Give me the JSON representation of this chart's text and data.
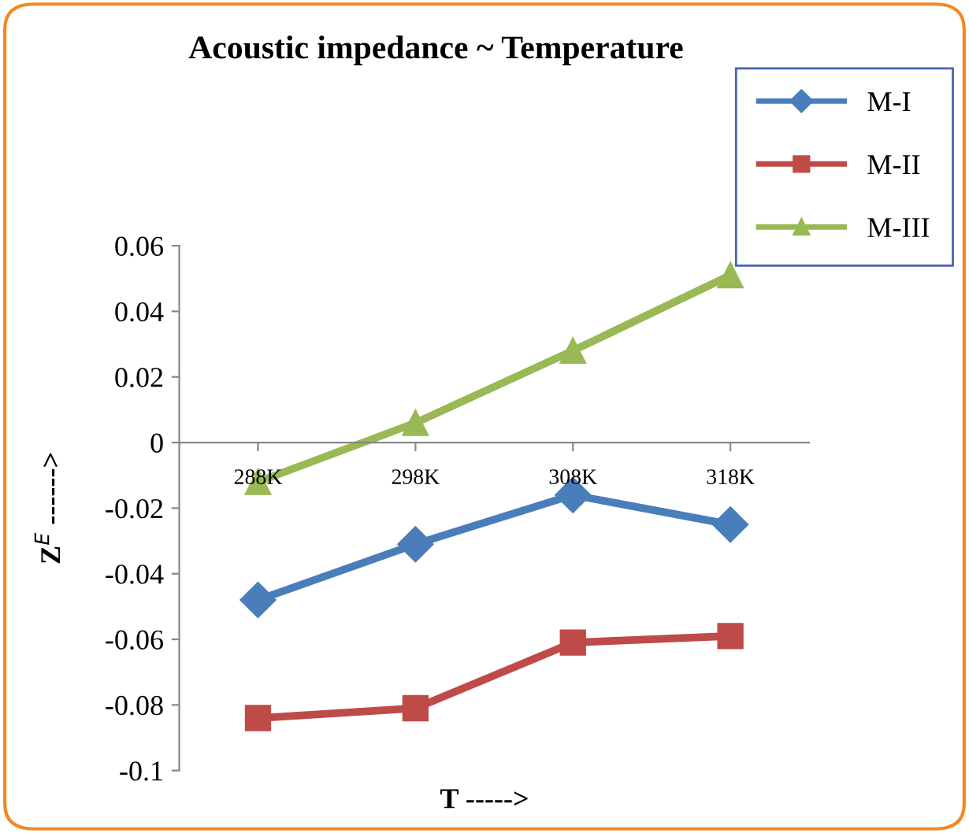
{
  "chart_data": {
    "type": "line",
    "title": "Acoustic impedance ~ Temperature",
    "xlabel": "T ----->",
    "ylabel": "Z$^{E}$ ------>",
    "categories": [
      "288K",
      "298K",
      "308K",
      "318K"
    ],
    "series": [
      {
        "name": "M-I",
        "color": "#4a7ebb",
        "marker": "diamond",
        "values": [
          -0.048,
          -0.031,
          -0.016,
          -0.025
        ]
      },
      {
        "name": "M-II",
        "color": "#be4b48",
        "marker": "square",
        "values": [
          -0.084,
          -0.081,
          -0.061,
          -0.059
        ]
      },
      {
        "name": "M-III",
        "color": "#98b954",
        "marker": "triangle",
        "values": [
          -0.012,
          0.006,
          0.028,
          0.051
        ]
      }
    ],
    "ylim": [
      -0.1,
      0.06
    ],
    "yticks": [
      {
        "value": -0.1,
        "label": "-0.1"
      },
      {
        "value": -0.08,
        "label": "-0.08"
      },
      {
        "value": -0.06,
        "label": "-0.06"
      },
      {
        "value": -0.04,
        "label": "-0.04"
      },
      {
        "value": -0.02,
        "label": "-0.02"
      },
      0,
      0.02,
      0.04,
      0.06
    ],
    "grid": false,
    "legend": "top right"
  }
}
